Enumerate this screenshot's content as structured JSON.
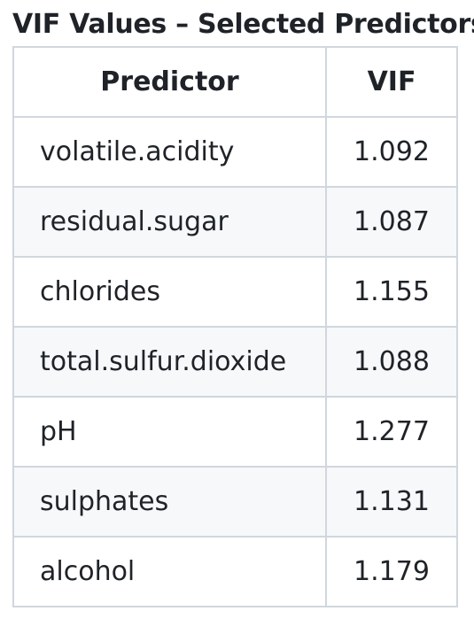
{
  "table": {
    "caption": "VIF Values – Selected Predictors",
    "headers": {
      "predictor": "Predictor",
      "vif": "VIF"
    },
    "rows": [
      {
        "predictor": "volatile.acidity",
        "vif": "1.092"
      },
      {
        "predictor": "residual.sugar",
        "vif": "1.087"
      },
      {
        "predictor": "chlorides",
        "vif": "1.155"
      },
      {
        "predictor": "total.sulfur.dioxide",
        "vif": "1.088"
      },
      {
        "predictor": "pH",
        "vif": "1.277"
      },
      {
        "predictor": "sulphates",
        "vif": "1.131"
      },
      {
        "predictor": "alcohol",
        "vif": "1.179"
      }
    ],
    "colors": {
      "border": "#d0d7de",
      "stripe": "#f6f8fa",
      "text": "#1f2328"
    }
  }
}
